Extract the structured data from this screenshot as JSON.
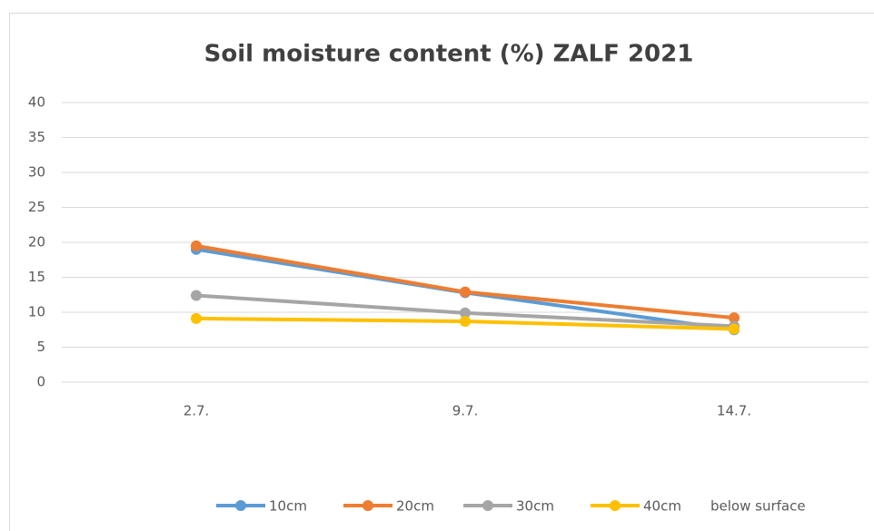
{
  "chart_data": {
    "type": "line",
    "title": "Soil moisture content (%) ZALF 2021",
    "categories": [
      "2.7.",
      "9.7.",
      "14.7."
    ],
    "series": [
      {
        "name": "10cm",
        "color": "#5b9bd5",
        "values": [
          19,
          12.8,
          7.5
        ]
      },
      {
        "name": "20cm",
        "color": "#ed7d31",
        "values": [
          19.5,
          12.9,
          9.2
        ]
      },
      {
        "name": "30cm",
        "color": "#a5a5a5",
        "values": [
          12.4,
          9.9,
          8
        ]
      },
      {
        "name": "40cm",
        "color": "#ffc000",
        "values": [
          9.1,
          8.7,
          7.6
        ]
      }
    ],
    "legend_note": "below surface",
    "ylim": [
      0,
      40
    ],
    "yticks": [
      0,
      5,
      10,
      15,
      20,
      25,
      30,
      35,
      40
    ],
    "grid": true,
    "legend": "bottom"
  }
}
